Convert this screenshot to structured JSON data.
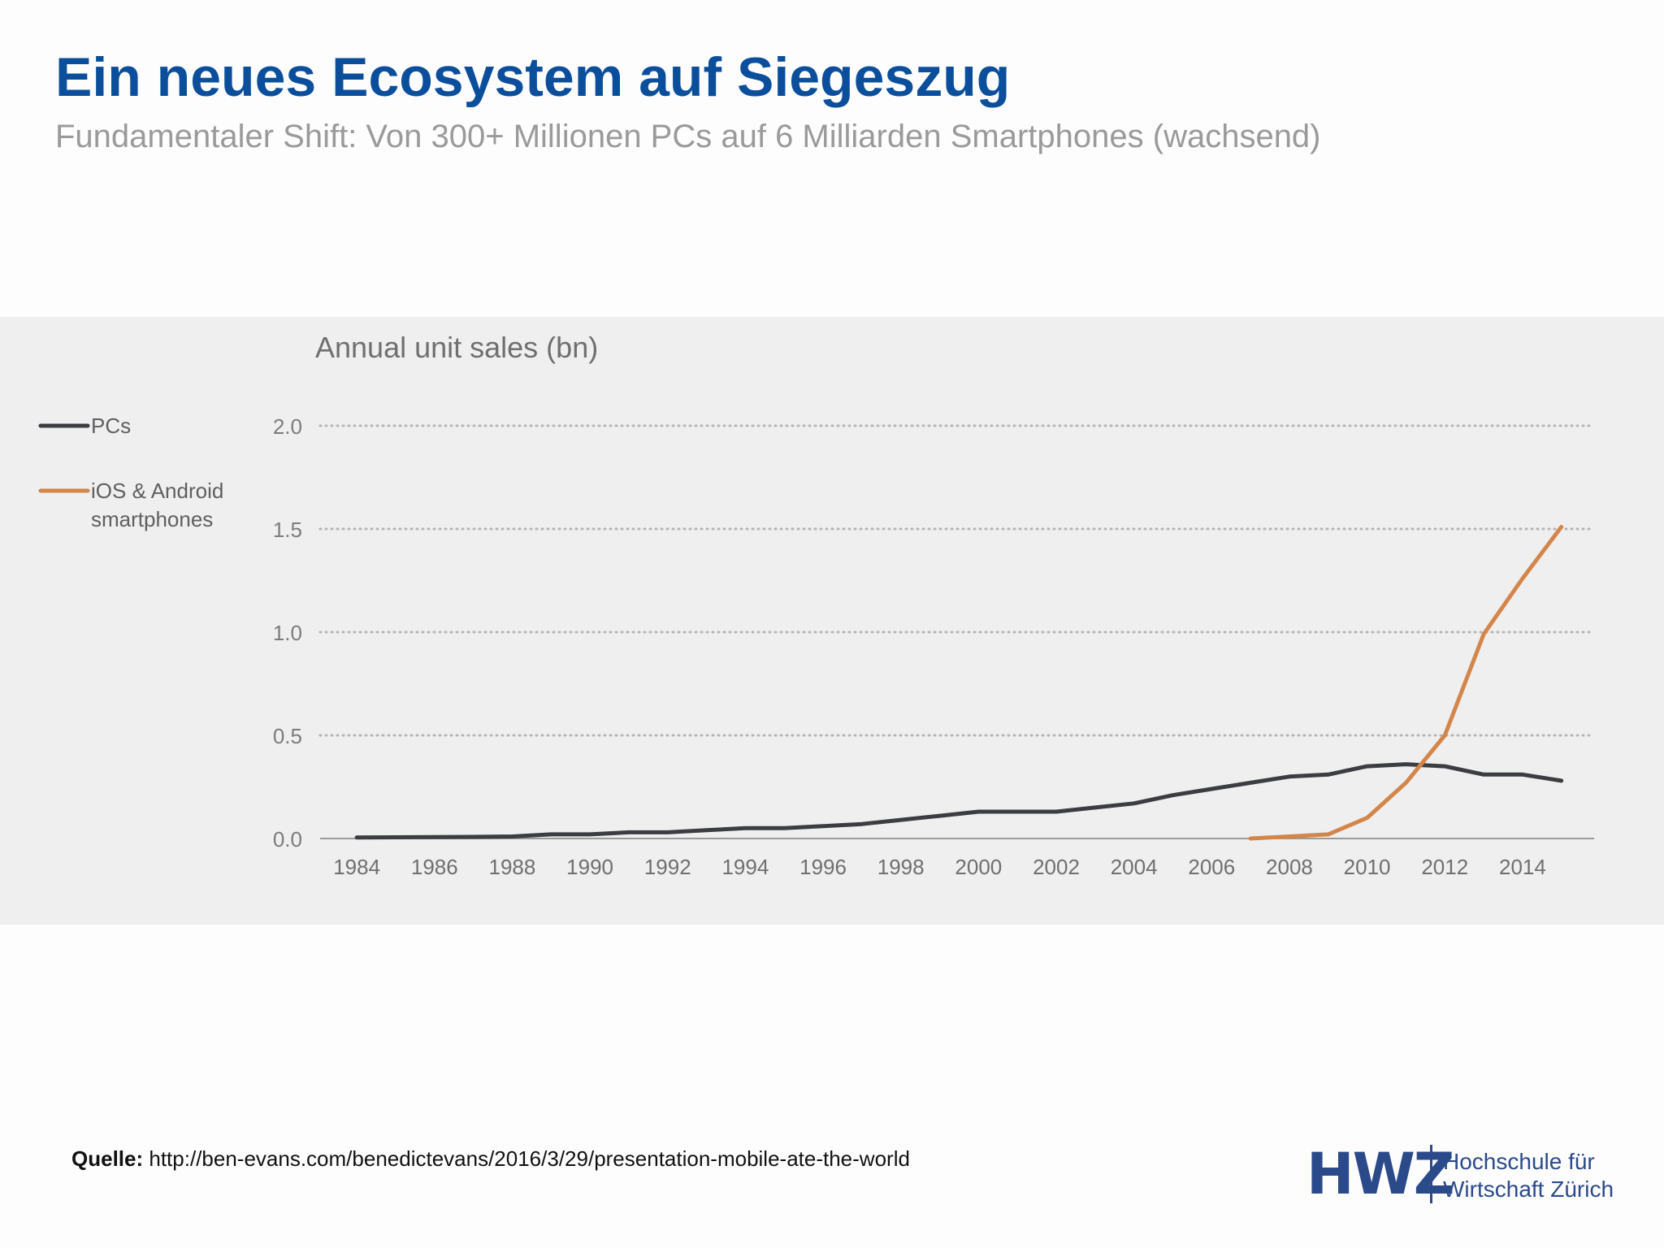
{
  "slide": {
    "title": "Ein neues Ecosystem auf Siegeszug",
    "subtitle": "Fundamentaler Shift: Von 300+ Millionen PCs auf 6 Milliarden Smartphones (wachsend)"
  },
  "source": {
    "label": "Quelle:",
    "url_text": "http://ben-evans.com/benedictevans/2016/3/29/presentation-mobile-ate-the-world"
  },
  "logo": {
    "mark": "HWZ",
    "line1": "Hochschule für",
    "line2": "Wirtschaft Zürich"
  },
  "chart_data": {
    "type": "line",
    "title": "Annual unit sales (bn)",
    "xlabel": "",
    "ylabel": "",
    "xlim": [
      1984,
      2015
    ],
    "ylim": [
      0,
      2.0
    ],
    "grid": true,
    "legend_position": "left",
    "x_ticks": [
      1984,
      1986,
      1988,
      1990,
      1992,
      1994,
      1996,
      1998,
      2000,
      2002,
      2004,
      2006,
      2008,
      2010,
      2012,
      2014
    ],
    "y_ticks": [
      "0.0",
      "0.5",
      "1.0",
      "1.5",
      "2.0"
    ],
    "series": [
      {
        "name": "PCs",
        "color": "#3b3d41",
        "x": [
          1984,
          1985,
          1986,
          1987,
          1988,
          1989,
          1990,
          1991,
          1992,
          1993,
          1994,
          1995,
          1996,
          1997,
          1998,
          1999,
          2000,
          2001,
          2002,
          2003,
          2004,
          2005,
          2006,
          2007,
          2008,
          2009,
          2010,
          2011,
          2012,
          2013,
          2014,
          2015
        ],
        "y": [
          0.005,
          0.006,
          0.007,
          0.008,
          0.01,
          0.02,
          0.02,
          0.03,
          0.03,
          0.04,
          0.05,
          0.05,
          0.06,
          0.07,
          0.09,
          0.11,
          0.13,
          0.13,
          0.13,
          0.15,
          0.17,
          0.21,
          0.24,
          0.27,
          0.3,
          0.31,
          0.35,
          0.36,
          0.35,
          0.31,
          0.31,
          0.28
        ]
      },
      {
        "name": "iOS & Android smartphones",
        "color": "#d4864a",
        "x": [
          2007,
          2008,
          2009,
          2010,
          2011,
          2012,
          2013,
          2014,
          2015
        ],
        "y": [
          0.0,
          0.01,
          0.02,
          0.1,
          0.27,
          0.5,
          0.99,
          1.26,
          1.51
        ]
      }
    ]
  }
}
